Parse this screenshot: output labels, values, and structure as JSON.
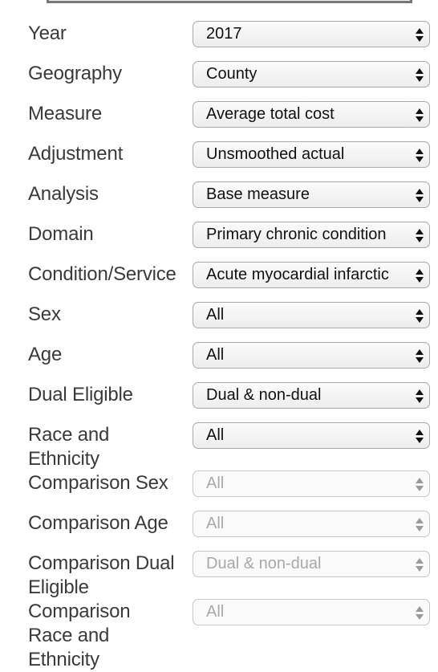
{
  "filters": [
    {
      "label": "Year",
      "value": "2017",
      "enabled": true
    },
    {
      "label": "Geography",
      "value": "County",
      "enabled": true
    },
    {
      "label": "Measure",
      "value": "Average total cost",
      "enabled": true
    },
    {
      "label": "Adjustment",
      "value": "Unsmoothed actual",
      "enabled": true
    },
    {
      "label": "Analysis",
      "value": "Base measure",
      "enabled": true
    },
    {
      "label": "Domain",
      "value": "Primary chronic condition",
      "enabled": true
    },
    {
      "label": "Condition/Service",
      "value": "Acute myocardial infarctic",
      "enabled": true
    },
    {
      "label": "Sex",
      "value": "All",
      "enabled": true
    },
    {
      "label": "Age",
      "value": "All",
      "enabled": true
    },
    {
      "label": "Dual Eligible",
      "value": "Dual & non-dual",
      "enabled": true
    },
    {
      "label": "Race and Ethnicity",
      "value": "All",
      "enabled": true
    },
    {
      "label": "Comparison Sex",
      "value": "All",
      "enabled": false
    },
    {
      "label": "Comparison Age",
      "value": "All",
      "enabled": false
    },
    {
      "label": "Comparison Dual Eligible",
      "value": "Dual & non-dual",
      "enabled": false
    },
    {
      "label": "Comparison Race and Ethnicity",
      "value": "All",
      "enabled": false
    }
  ],
  "icons": {
    "dropdown": "up-down-arrows-icon"
  },
  "colors": {
    "label_text": "#3a3a3a",
    "disabled_text": "#a8a8a8",
    "border": "#a9a9a9"
  }
}
